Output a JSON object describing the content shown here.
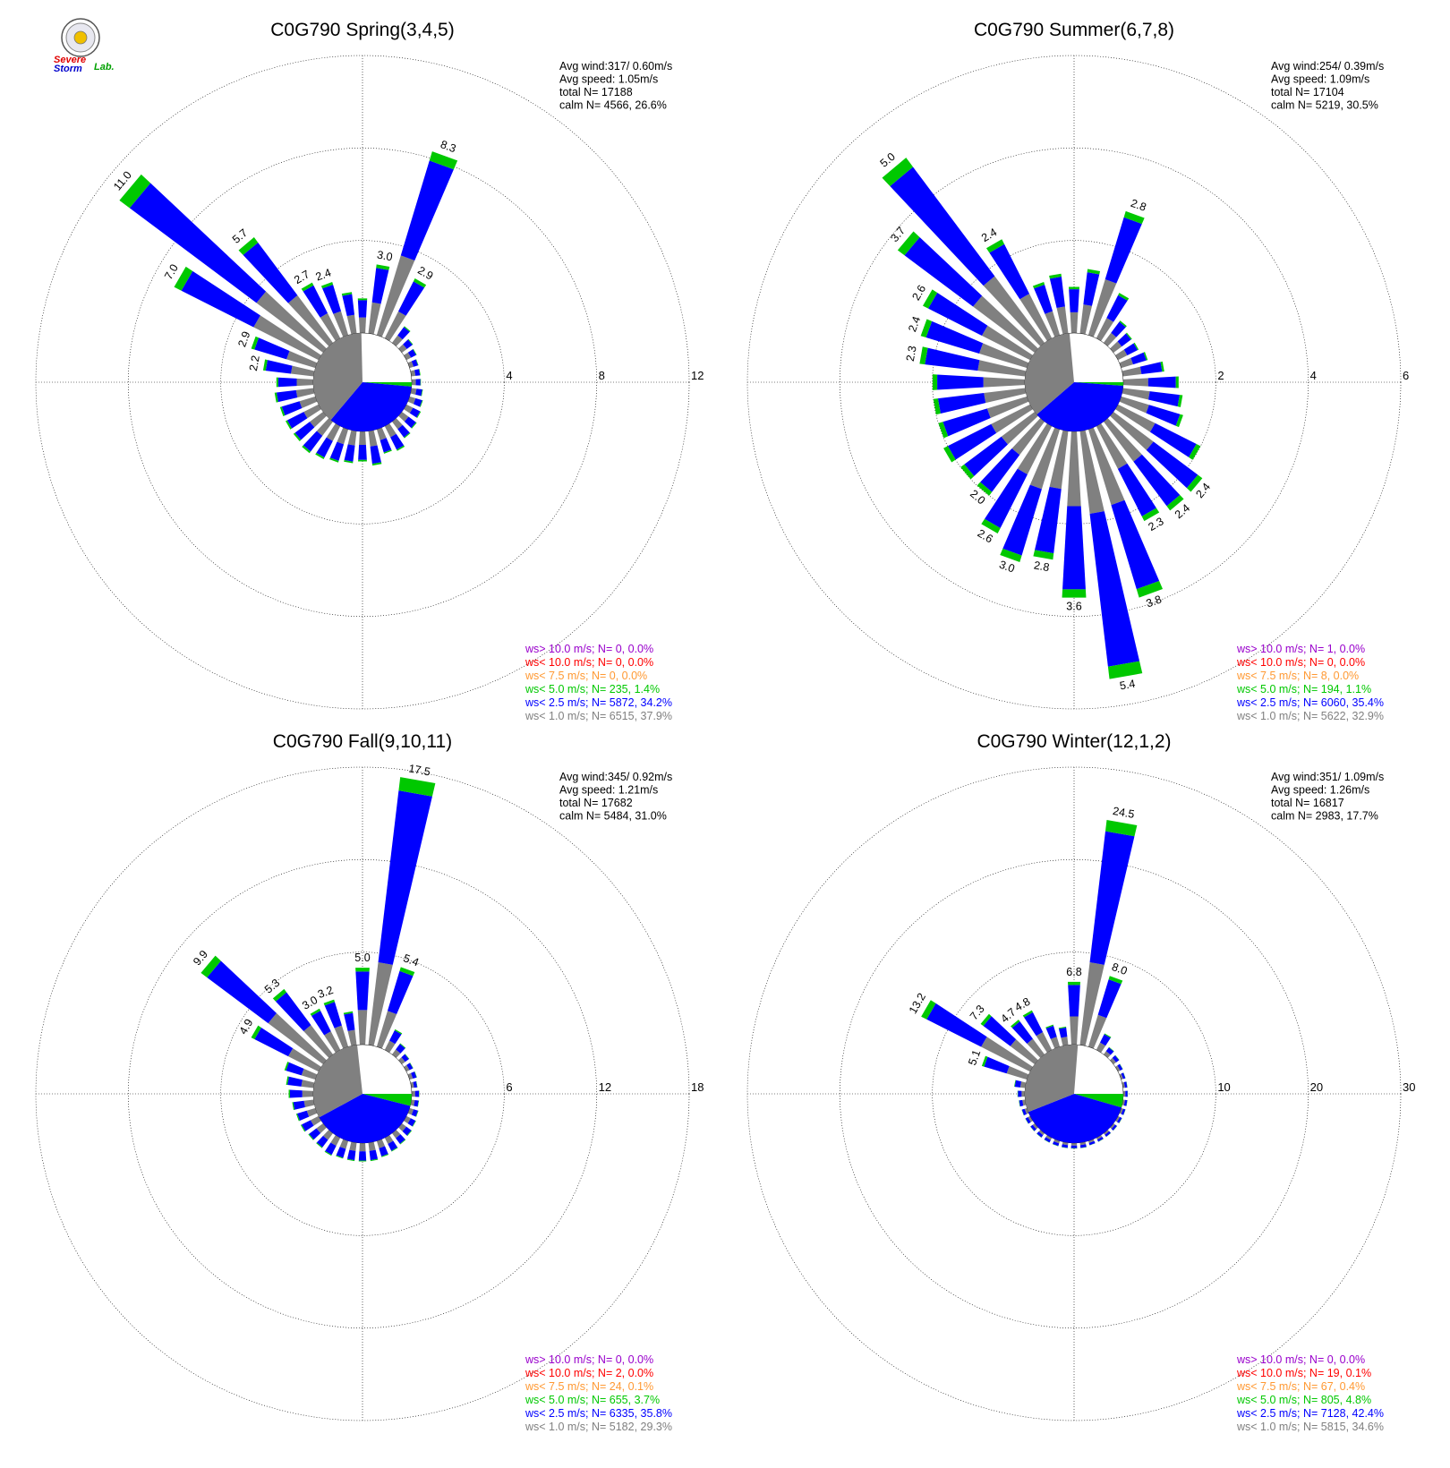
{
  "colors": {
    "gray": "#808080",
    "blue": "#0000ff",
    "green": "#00c800",
    "orange": "#ff9933",
    "red": "#ff0000",
    "purple": "#9900cc"
  },
  "logo": {
    "text_a": "Severe",
    "text_b": "Storm",
    "text_c": "Lab."
  },
  "chart_data": [
    {
      "type": "wind-rose",
      "title": "C0G790 Spring(3,4,5)",
      "info": [
        "Avg wind:317/ 0.60m/s",
        "Avg speed: 1.05m/s",
        "total N=      17188",
        "calm N=   4566,  26.6%"
      ],
      "ring_labels": [
        "4",
        "8",
        "12"
      ],
      "rmax": 12,
      "calm_percent": 26.6,
      "pie_fractions": {
        "gray": 0.379,
        "blue": 0.342,
        "green": 0.014,
        "orange": 0.0,
        "red": 0.0,
        "purple": 0.0
      },
      "bars": [
        {
          "dir": 0,
          "total": 1.5
        },
        {
          "dir": 10,
          "total": 3.0,
          "label": "3.0"
        },
        {
          "dir": 20,
          "total": 8.3,
          "label": "8.3"
        },
        {
          "dir": 30,
          "total": 2.9,
          "label": "2.9"
        },
        {
          "dir": 40,
          "total": 0.9
        },
        {
          "dir": 50,
          "total": 0.6
        },
        {
          "dir": 60,
          "total": 0.5
        },
        {
          "dir": 70,
          "total": 0.4
        },
        {
          "dir": 80,
          "total": 0.4
        },
        {
          "dir": 90,
          "total": 0.4
        },
        {
          "dir": 100,
          "total": 0.5
        },
        {
          "dir": 110,
          "total": 0.6
        },
        {
          "dir": 120,
          "total": 0.7
        },
        {
          "dir": 130,
          "total": 0.8
        },
        {
          "dir": 140,
          "total": 0.9
        },
        {
          "dir": 150,
          "total": 1.2
        },
        {
          "dir": 160,
          "total": 1.1
        },
        {
          "dir": 170,
          "total": 1.5
        },
        {
          "dir": 180,
          "total": 1.3
        },
        {
          "dir": 190,
          "total": 1.4
        },
        {
          "dir": 200,
          "total": 1.5
        },
        {
          "dir": 210,
          "total": 1.6
        },
        {
          "dir": 220,
          "total": 1.7
        },
        {
          "dir": 230,
          "total": 1.6
        },
        {
          "dir": 240,
          "total": 1.6
        },
        {
          "dir": 250,
          "total": 1.6
        },
        {
          "dir": 260,
          "total": 1.7
        },
        {
          "dir": 270,
          "total": 1.6
        },
        {
          "dir": 280,
          "total": 2.2,
          "label": "2.2"
        },
        {
          "dir": 290,
          "total": 2.9,
          "label": "2.9"
        },
        {
          "dir": 300,
          "total": 7.0,
          "label": "7.0"
        },
        {
          "dir": 310,
          "total": 11.0,
          "label": "11.0"
        },
        {
          "dir": 320,
          "total": 5.7,
          "label": "5.7"
        },
        {
          "dir": 330,
          "total": 2.7,
          "label": "2.7"
        },
        {
          "dir": 340,
          "total": 2.4,
          "label": "2.4"
        },
        {
          "dir": 350,
          "total": 1.8
        }
      ],
      "legend": [
        {
          "text": "ws> 10.0 m/s; N=      0,  0.0%",
          "color": "purple"
        },
        {
          "text": "ws< 10.0 m/s; N=      0,  0.0%",
          "color": "red"
        },
        {
          "text": "ws<  7.5 m/s; N=      0,  0.0%",
          "color": "orange"
        },
        {
          "text": "ws<  5.0 m/s; N=   235,  1.4%",
          "color": "green"
        },
        {
          "text": "ws<  2.5 m/s; N=  5872, 34.2%",
          "color": "blue"
        },
        {
          "text": "ws<  1.0 m/s; N=  6515, 37.9%",
          "color": "gray"
        }
      ]
    },
    {
      "type": "wind-rose",
      "title": "C0G790 Summer(6,7,8)",
      "info": [
        "Avg wind:254/ 0.39m/s",
        "Avg speed: 1.09m/s",
        "total N=      17104",
        "calm N=   5219,  30.5%"
      ],
      "ring_labels": [
        "2",
        "4",
        "6"
      ],
      "rmax": 6,
      "calm_percent": 30.5,
      "pie_fractions": {
        "gray": 0.329,
        "blue": 0.354,
        "green": 0.011,
        "orange": 0.0,
        "red": 0.0,
        "purple": 0.0
      },
      "bars": [
        {
          "dir": 0,
          "total": 1.0
        },
        {
          "dir": 10,
          "total": 1.4
        },
        {
          "dir": 20,
          "total": 2.8,
          "label": "2.8"
        },
        {
          "dir": 30,
          "total": 1.1
        },
        {
          "dir": 40,
          "total": 0.6
        },
        {
          "dir": 50,
          "total": 0.5
        },
        {
          "dir": 60,
          "total": 0.5
        },
        {
          "dir": 70,
          "total": 0.6
        },
        {
          "dir": 80,
          "total": 0.9
        },
        {
          "dir": 90,
          "total": 1.2
        },
        {
          "dir": 100,
          "total": 1.3
        },
        {
          "dir": 110,
          "total": 1.4
        },
        {
          "dir": 120,
          "total": 2.0
        },
        {
          "dir": 130,
          "total": 2.4,
          "label": "2.4"
        },
        {
          "dir": 140,
          "total": 2.4,
          "label": "2.4"
        },
        {
          "dir": 150,
          "total": 2.3,
          "label": "2.3"
        },
        {
          "dir": 160,
          "total": 3.8,
          "label": "3.8"
        },
        {
          "dir": 170,
          "total": 5.4,
          "label": "5.4"
        },
        {
          "dir": 180,
          "total": 3.6,
          "label": "3.6"
        },
        {
          "dir": 190,
          "total": 2.8,
          "label": "2.8"
        },
        {
          "dir": 200,
          "total": 3.0,
          "label": "3.0"
        },
        {
          "dir": 210,
          "total": 2.6,
          "label": "2.6"
        },
        {
          "dir": 220,
          "total": 2.0,
          "label": "2.0"
        },
        {
          "dir": 230,
          "total": 2.0
        },
        {
          "dir": 240,
          "total": 2.1
        },
        {
          "dir": 250,
          "total": 2.0
        },
        {
          "dir": 260,
          "total": 2.0
        },
        {
          "dir": 270,
          "total": 2.0
        },
        {
          "dir": 280,
          "total": 2.3,
          "label": "2.3"
        },
        {
          "dir": 290,
          "total": 2.4,
          "label": "2.4"
        },
        {
          "dir": 300,
          "total": 2.6,
          "label": "2.6"
        },
        {
          "dir": 310,
          "total": 3.7,
          "label": "3.7"
        },
        {
          "dir": 320,
          "total": 5.0,
          "label": "5.0"
        },
        {
          "dir": 330,
          "total": 2.4,
          "label": "2.4"
        },
        {
          "dir": 340,
          "total": 1.2
        },
        {
          "dir": 350,
          "total": 1.3
        }
      ],
      "legend": [
        {
          "text": "ws> 10.0 m/s; N=      1,  0.0%",
          "color": "purple"
        },
        {
          "text": "ws< 10.0 m/s; N=      0,  0.0%",
          "color": "red"
        },
        {
          "text": "ws<  7.5 m/s; N=      8,  0.0%",
          "color": "orange"
        },
        {
          "text": "ws<  5.0 m/s; N=   194,  1.1%",
          "color": "green"
        },
        {
          "text": "ws<  2.5 m/s; N=  6060, 35.4%",
          "color": "blue"
        },
        {
          "text": "ws<  1.0 m/s; N=  5622, 32.9%",
          "color": "gray"
        }
      ]
    },
    {
      "type": "wind-rose",
      "title": "C0G790 Fall(9,10,11)",
      "info": [
        "Avg wind:345/ 0.92m/s",
        "Avg speed: 1.21m/s",
        "total N=      17682",
        "calm N=   5484,  31.0%"
      ],
      "ring_labels": [
        "6",
        "12",
        "18"
      ],
      "rmax": 18,
      "calm_percent": 31.0,
      "pie_fractions": {
        "gray": 0.293,
        "blue": 0.358,
        "green": 0.037,
        "orange": 0.001,
        "red": 0.0,
        "purple": 0.0
      },
      "bars": [
        {
          "dir": 0,
          "total": 5.0,
          "label": "5.0"
        },
        {
          "dir": 10,
          "total": 17.5,
          "label": "17.5"
        },
        {
          "dir": 20,
          "total": 5.4,
          "label": "5.4"
        },
        {
          "dir": 30,
          "total": 1.5
        },
        {
          "dir": 40,
          "total": 0.9
        },
        {
          "dir": 50,
          "total": 0.6
        },
        {
          "dir": 60,
          "total": 0.5
        },
        {
          "dir": 70,
          "total": 0.5
        },
        {
          "dir": 80,
          "total": 0.4
        },
        {
          "dir": 90,
          "total": 0.5
        },
        {
          "dir": 100,
          "total": 0.5
        },
        {
          "dir": 110,
          "total": 0.6
        },
        {
          "dir": 120,
          "total": 0.7
        },
        {
          "dir": 130,
          "total": 0.8
        },
        {
          "dir": 140,
          "total": 0.9
        },
        {
          "dir": 150,
          "total": 1.0
        },
        {
          "dir": 160,
          "total": 1.1
        },
        {
          "dir": 170,
          "total": 1.2
        },
        {
          "dir": 180,
          "total": 1.2
        },
        {
          "dir": 190,
          "total": 1.2
        },
        {
          "dir": 200,
          "total": 1.2
        },
        {
          "dir": 210,
          "total": 1.3
        },
        {
          "dir": 220,
          "total": 1.2
        },
        {
          "dir": 230,
          "total": 1.2
        },
        {
          "dir": 240,
          "total": 1.3
        },
        {
          "dir": 250,
          "total": 1.3
        },
        {
          "dir": 260,
          "total": 1.4
        },
        {
          "dir": 270,
          "total": 1.6
        },
        {
          "dir": 280,
          "total": 1.8
        },
        {
          "dir": 290,
          "total": 2.1
        },
        {
          "dir": 300,
          "total": 4.9,
          "label": "4.9"
        },
        {
          "dir": 310,
          "total": 9.9,
          "label": "9.9"
        },
        {
          "dir": 320,
          "total": 5.3,
          "label": "5.3"
        },
        {
          "dir": 330,
          "total": 3.0,
          "label": "3.0"
        },
        {
          "dir": 340,
          "total": 3.2,
          "label": "3.2"
        },
        {
          "dir": 350,
          "total": 2.2
        }
      ],
      "legend": [
        {
          "text": "ws> 10.0 m/s; N=      0,  0.0%",
          "color": "purple"
        },
        {
          "text": "ws< 10.0 m/s; N=      2,  0.0%",
          "color": "red"
        },
        {
          "text": "ws<  7.5 m/s; N=     24,  0.1%",
          "color": "orange"
        },
        {
          "text": "ws<  5.0 m/s; N=   655,  3.7%",
          "color": "green"
        },
        {
          "text": "ws<  2.5 m/s; N=  6335, 35.8%",
          "color": "blue"
        },
        {
          "text": "ws<  1.0 m/s; N=  5182, 29.3%",
          "color": "gray"
        }
      ]
    },
    {
      "type": "wind-rose",
      "title": "C0G790 Winter(12,1,2)",
      "info": [
        "Avg wind:351/ 1.09m/s",
        "Avg speed: 1.26m/s",
        "total N=      16817",
        "calm N=   2983,  17.7%"
      ],
      "ring_labels": [
        "10",
        "20",
        "30"
      ],
      "rmax": 30,
      "calm_percent": 17.7,
      "pie_fractions": {
        "gray": 0.346,
        "blue": 0.424,
        "green": 0.048,
        "orange": 0.004,
        "red": 0.001,
        "purple": 0.0
      },
      "bars": [
        {
          "dir": 0,
          "total": 6.8,
          "label": "6.8"
        },
        {
          "dir": 10,
          "total": 24.5,
          "label": "24.5"
        },
        {
          "dir": 20,
          "total": 8.0,
          "label": "8.0"
        },
        {
          "dir": 30,
          "total": 2.0
        },
        {
          "dir": 40,
          "total": 1.0
        },
        {
          "dir": 50,
          "total": 0.8
        },
        {
          "dir": 60,
          "total": 0.6
        },
        {
          "dir": 70,
          "total": 0.5
        },
        {
          "dir": 80,
          "total": 0.5
        },
        {
          "dir": 90,
          "total": 0.5
        },
        {
          "dir": 100,
          "total": 0.5
        },
        {
          "dir": 110,
          "total": 0.5
        },
        {
          "dir": 120,
          "total": 0.5
        },
        {
          "dir": 130,
          "total": 0.5
        },
        {
          "dir": 140,
          "total": 0.5
        },
        {
          "dir": 150,
          "total": 0.5
        },
        {
          "dir": 160,
          "total": 0.5
        },
        {
          "dir": 170,
          "total": 0.6
        },
        {
          "dir": 180,
          "total": 0.6
        },
        {
          "dir": 190,
          "total": 0.6
        },
        {
          "dir": 200,
          "total": 0.6
        },
        {
          "dir": 210,
          "total": 0.6
        },
        {
          "dir": 220,
          "total": 0.6
        },
        {
          "dir": 230,
          "total": 0.6
        },
        {
          "dir": 240,
          "total": 0.6
        },
        {
          "dir": 250,
          "total": 0.6
        },
        {
          "dir": 260,
          "total": 0.7
        },
        {
          "dir": 270,
          "total": 0.8
        },
        {
          "dir": 280,
          "total": 1.2
        },
        {
          "dir": 290,
          "total": 5.1,
          "label": "5.1"
        },
        {
          "dir": 300,
          "total": 13.2,
          "label": "13.2"
        },
        {
          "dir": 310,
          "total": 7.3,
          "label": "7.3"
        },
        {
          "dir": 320,
          "total": 4.7,
          "label": "4.7"
        },
        {
          "dir": 330,
          "total": 4.8,
          "label": "4.8"
        },
        {
          "dir": 340,
          "total": 2.5
        },
        {
          "dir": 350,
          "total": 2.0
        }
      ],
      "legend": [
        {
          "text": "ws> 10.0 m/s; N=      0,  0.0%",
          "color": "purple"
        },
        {
          "text": "ws< 10.0 m/s; N=     19,  0.1%",
          "color": "red"
        },
        {
          "text": "ws<  7.5 m/s; N=     67,  0.4%",
          "color": "orange"
        },
        {
          "text": "ws<  5.0 m/s; N=   805,  4.8%",
          "color": "green"
        },
        {
          "text": "ws<  2.5 m/s; N=  7128, 42.4%",
          "color": "blue"
        },
        {
          "text": "ws<  1.0 m/s; N=  5815, 34.6%",
          "color": "gray"
        }
      ]
    }
  ]
}
